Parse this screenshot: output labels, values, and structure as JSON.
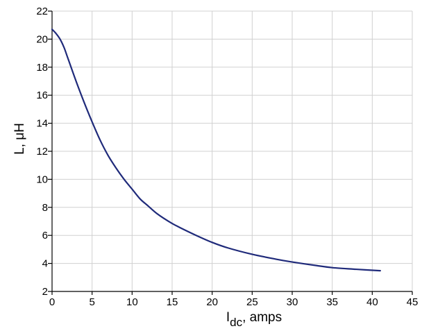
{
  "chart_data": {
    "type": "line",
    "title": "",
    "xlabel_main": "I",
    "xlabel_sub": "dc",
    "xlabel_rest": ", amps",
    "ylabel": "L, μH",
    "xlim": [
      0,
      45
    ],
    "ylim": [
      2,
      22
    ],
    "xticks": [
      0,
      5,
      10,
      15,
      20,
      25,
      30,
      35,
      40,
      45
    ],
    "yticks": [
      2,
      4,
      6,
      8,
      10,
      12,
      14,
      16,
      18,
      20,
      22
    ],
    "grid": true,
    "colors": {
      "series": "#1f2a7a",
      "grid": "#d0d0d0",
      "axis": "#000000"
    },
    "series": [
      {
        "x": [
          0,
          0.5,
          1,
          1.5,
          2,
          3,
          4,
          5,
          6,
          7,
          8,
          9,
          10,
          11,
          12,
          13,
          14,
          15,
          16,
          18,
          20,
          22,
          25,
          28,
          30,
          33,
          35,
          38,
          41
        ],
        "y": [
          20.7,
          20.4,
          20.0,
          19.4,
          18.6,
          17.0,
          15.5,
          14.1,
          12.8,
          11.7,
          10.8,
          10.0,
          9.3,
          8.6,
          8.1,
          7.6,
          7.2,
          6.85,
          6.55,
          6.0,
          5.5,
          5.1,
          4.65,
          4.3,
          4.1,
          3.85,
          3.7,
          3.58,
          3.48
        ]
      }
    ]
  }
}
